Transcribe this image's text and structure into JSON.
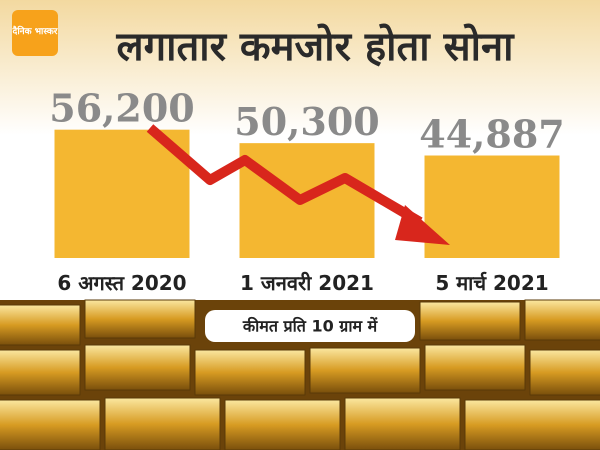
{
  "brand": "दैनिक भास्कर",
  "chart_data": {
    "type": "bar",
    "title": "लगातार कमजोर होता सोना",
    "categories": [
      "6 अगस्त 2020",
      "1 जनवरी 2021",
      "5 मार्च 2021"
    ],
    "values": [
      56200,
      50300,
      44887
    ],
    "value_labels": [
      "56,200",
      "50,300",
      "44,887"
    ],
    "color": "#f4b731",
    "ylim": [
      0,
      60000
    ],
    "note": "कीमत प्रति 10 ग्राम में"
  }
}
